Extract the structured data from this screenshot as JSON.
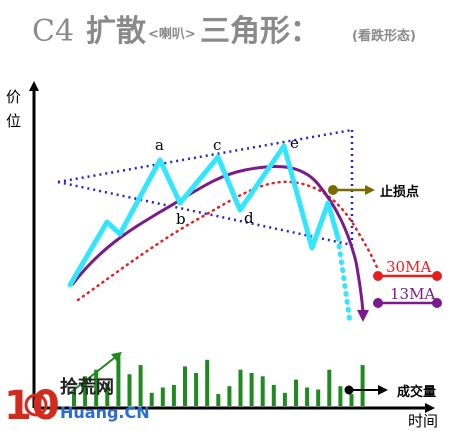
{
  "title": {
    "code": "C4",
    "main_1": "扩散",
    "small": "<喇叭>",
    "main_2": "三角形：",
    "sub": "(看跌形态)"
  },
  "axes": {
    "y_label_1": "价",
    "y_label_2": "位",
    "x_label": "时间"
  },
  "points": {
    "a": "a",
    "b": "b",
    "c": "c",
    "d": "d",
    "e": "e"
  },
  "annotations": {
    "stop_loss": "止损点",
    "volume": "成交量"
  },
  "moving_averages": [
    {
      "label": "30MA",
      "color": "#e62020"
    },
    {
      "label": "13MA",
      "color": "#7b1a8c"
    }
  ],
  "colors": {
    "price": "#33e6ff",
    "trendline": "#2323d6",
    "stop_loss_marker": "#7a6a00",
    "volume_bar": "#1f8a1f"
  },
  "volume_levels": [
    0.18,
    0.45,
    0.55,
    0.35,
    0.8,
    0.48,
    0.62,
    0.2,
    0.28,
    0.32,
    0.6,
    0.5,
    0.7,
    0.18,
    0.3,
    0.55,
    0.5,
    0.45,
    0.32,
    0.2,
    0.4,
    0.28,
    0.25,
    0.55,
    0.3,
    0.18,
    0.62
  ],
  "watermark": {
    "number": "10",
    "text": "拾荒网",
    "url": "Huang.CN"
  }
}
